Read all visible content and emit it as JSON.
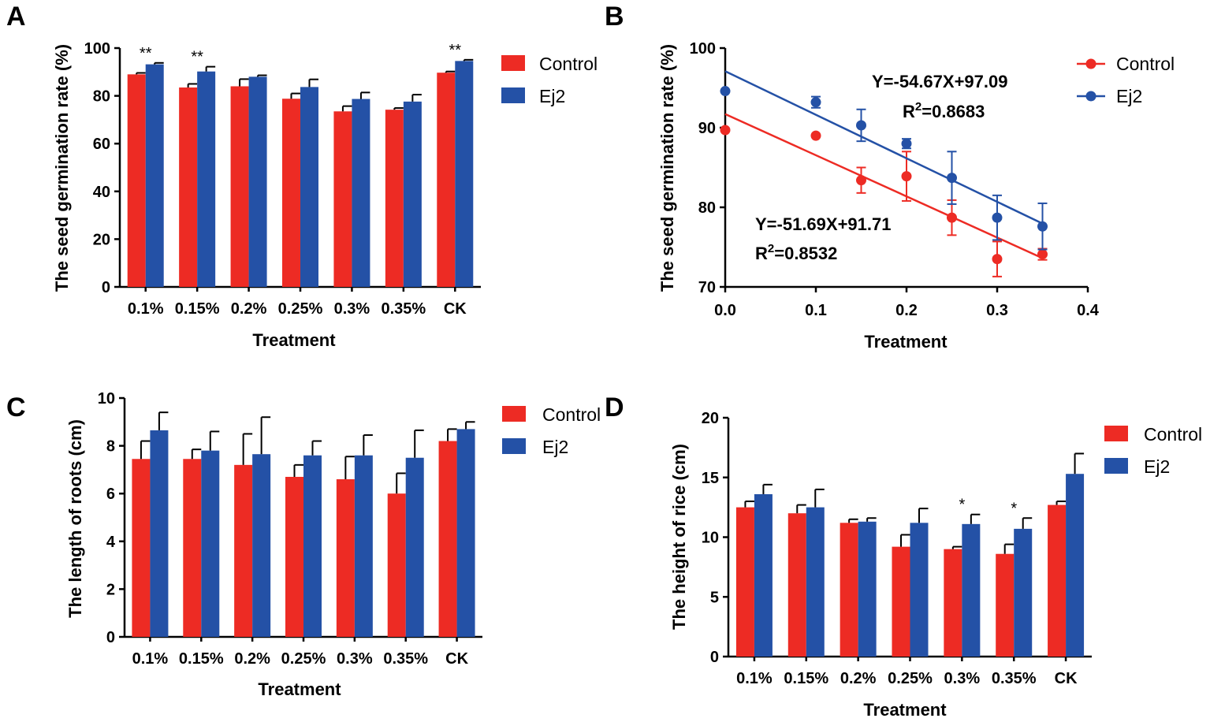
{
  "colors": {
    "control": "#ed2b24",
    "ej2": "#2451a6"
  },
  "chart_data": [
    {
      "panel": "A",
      "type": "bar",
      "title": "",
      "xlabel": "Treatment",
      "ylabel": "The seed germination rate (%)",
      "ylim": [
        0,
        100
      ],
      "yticks": [
        "0",
        "20",
        "40",
        "60",
        "80",
        "100"
      ],
      "categories": [
        "0.1%",
        "0.15%",
        "0.2%",
        "0.25%",
        "0.3%",
        "0.35%",
        "CK"
      ],
      "series": [
        {
          "name": "Control",
          "values": [
            89,
            83.5,
            84,
            78.8,
            73.5,
            74.2,
            89.7
          ],
          "errors": [
            0.6,
            1.5,
            3.0,
            2.2,
            2.2,
            0.7,
            0.5
          ]
        },
        {
          "name": "Ej2",
          "values": [
            93.2,
            90.2,
            88,
            83.7,
            78.7,
            77.6,
            94.6
          ],
          "errors": [
            0.6,
            2.0,
            0.6,
            3.2,
            2.7,
            2.9,
            0.5
          ]
        }
      ],
      "annotations": [
        "**",
        "**",
        "",
        "",
        "",
        "",
        "**"
      ],
      "legend": [
        "Control",
        "Ej2"
      ]
    },
    {
      "panel": "B",
      "type": "scatter",
      "xlabel": "Treatment",
      "ylabel": "The seed germination rate (%)",
      "xlim": [
        0,
        0.4
      ],
      "ylim": [
        70,
        100
      ],
      "xticks": [
        "0.0",
        "0.1",
        "0.2",
        "0.3",
        "0.4"
      ],
      "yticks": [
        "70",
        "80",
        "90",
        "100"
      ],
      "series": [
        {
          "name": "Control",
          "x": [
            0,
            0.1,
            0.15,
            0.2,
            0.25,
            0.3,
            0.35
          ],
          "y": [
            89.7,
            89.0,
            83.4,
            83.9,
            78.7,
            73.5,
            74.1
          ],
          "errors": [
            0,
            0,
            1.6,
            3.1,
            2.2,
            2.2,
            0.7
          ],
          "fit": {
            "slope": -51.69,
            "intercept": 91.71
          }
        },
        {
          "name": "Ej2",
          "x": [
            0,
            0.1,
            0.15,
            0.2,
            0.25,
            0.3,
            0.35
          ],
          "y": [
            94.6,
            93.2,
            90.3,
            88.0,
            83.7,
            78.7,
            77.6
          ],
          "errors": [
            0,
            0.7,
            2.0,
            0.6,
            3.3,
            2.8,
            2.9
          ],
          "fit": {
            "slope": -54.67,
            "intercept": 97.09
          }
        }
      ],
      "annotations": {
        "ej2_equation": "Y=-54.67X+97.09",
        "ej2_r2_prefix": "R",
        "ej2_r2_sup": "2",
        "ej2_r2_value": "=0.8683",
        "control_equation": "Y=-51.69X+91.71",
        "control_r2_prefix": "R",
        "control_r2_sup": "2",
        "control_r2_value": "=0.8532"
      },
      "legend": [
        "Control",
        "Ej2"
      ]
    },
    {
      "panel": "C",
      "type": "bar",
      "xlabel": "Treatment",
      "ylabel": "The length of roots (cm)",
      "ylim": [
        0,
        10
      ],
      "yticks": [
        "0",
        "2",
        "4",
        "6",
        "8",
        "10"
      ],
      "categories": [
        "0.1%",
        "0.15%",
        "0.2%",
        "0.25%",
        "0.3%",
        "0.35%",
        "CK"
      ],
      "series": [
        {
          "name": "Control",
          "values": [
            7.45,
            7.45,
            7.2,
            6.7,
            6.6,
            6.0,
            8.2
          ],
          "errors": [
            0.75,
            0.4,
            1.3,
            0.5,
            0.95,
            0.85,
            0.5
          ]
        },
        {
          "name": "Ej2",
          "values": [
            8.65,
            7.8,
            7.65,
            7.6,
            7.6,
            7.5,
            8.7
          ],
          "errors": [
            0.75,
            0.8,
            1.55,
            0.6,
            0.85,
            1.15,
            0.3
          ]
        }
      ],
      "annotations": [
        "",
        "",
        "",
        "",
        "",
        "",
        ""
      ],
      "legend": [
        "Control",
        "Ej2"
      ]
    },
    {
      "panel": "D",
      "type": "bar",
      "xlabel": "Treatment",
      "ylabel": "The height of rice (cm)",
      "ylim": [
        0,
        20
      ],
      "yticks": [
        "0",
        "5",
        "10",
        "15",
        "20"
      ],
      "categories": [
        "0.1%",
        "0.15%",
        "0.2%",
        "0.25%",
        "0.3%",
        "0.35%",
        "CK"
      ],
      "series": [
        {
          "name": "Control",
          "values": [
            12.5,
            12.0,
            11.2,
            9.2,
            9.0,
            8.6,
            12.7
          ],
          "errors": [
            0.5,
            0.7,
            0.3,
            1.0,
            0.2,
            0.8,
            0.3
          ]
        },
        {
          "name": "Ej2",
          "values": [
            13.6,
            12.5,
            11.3,
            11.2,
            11.1,
            10.7,
            15.3
          ],
          "errors": [
            0.8,
            1.5,
            0.3,
            1.2,
            0.8,
            0.9,
            1.7
          ]
        }
      ],
      "annotations": [
        "",
        "",
        "",
        "",
        "*",
        "*",
        ""
      ],
      "legend": [
        "Control",
        "Ej2"
      ]
    }
  ]
}
